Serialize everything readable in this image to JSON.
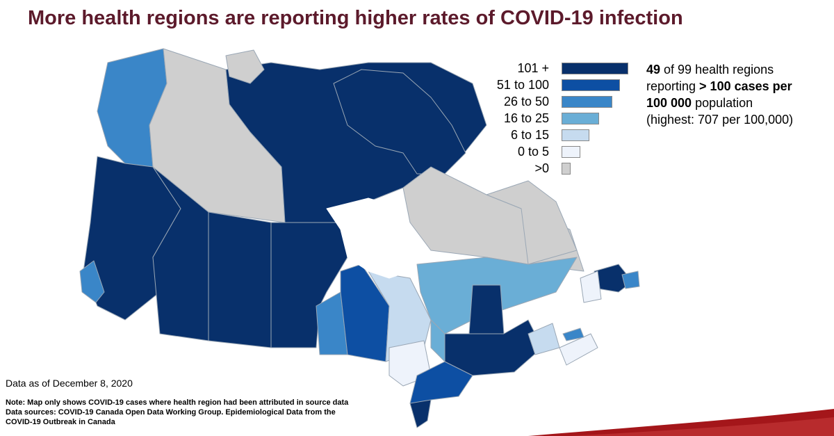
{
  "title": "More health regions are reporting higher rates of COVID-19 infection",
  "legend": {
    "items": [
      {
        "label": "101 +",
        "color": "#08306b",
        "bar_fraction": 1.0
      },
      {
        "label": "51 to 100",
        "color": "#0d4fa3",
        "bar_fraction": 0.88
      },
      {
        "label": "26 to 50",
        "color": "#3a86c8",
        "bar_fraction": 0.76
      },
      {
        "label": "16 to 25",
        "color": "#6aaed6",
        "bar_fraction": 0.56
      },
      {
        "label": "6 to 15",
        "color": "#c6dbef",
        "bar_fraction": 0.42
      },
      {
        "label": "0 to 5",
        "color": "#eef3fb",
        "bar_fraction": 0.28
      },
      {
        "label": ">0",
        "color": "#cfcfcf",
        "bar_fraction": 0.14
      }
    ]
  },
  "summary": {
    "count": "49",
    "line1_rest": " of 99 health regions",
    "line2_plain": "reporting ",
    "line2_bold": "> 100 cases per",
    "line3_bold": "100 000",
    "line3_rest": " population",
    "line4": "(highest: 707 per 100,000)"
  },
  "date_note": "Data as of December 8, 2020",
  "footnote": {
    "line1": "Note: Map only shows COVID-19 cases where health region had been attributed in source data",
    "line2": "Data sources: COVID-19 Canada Open Data Working Group. Epidemiological  Data from the",
    "line3": "COVID-19 Outbreak in Canada"
  },
  "colors": {
    "title": "#5c1a2b",
    "accent_red": "#a4161a",
    "no_data_grey": "#cfcfcf"
  }
}
